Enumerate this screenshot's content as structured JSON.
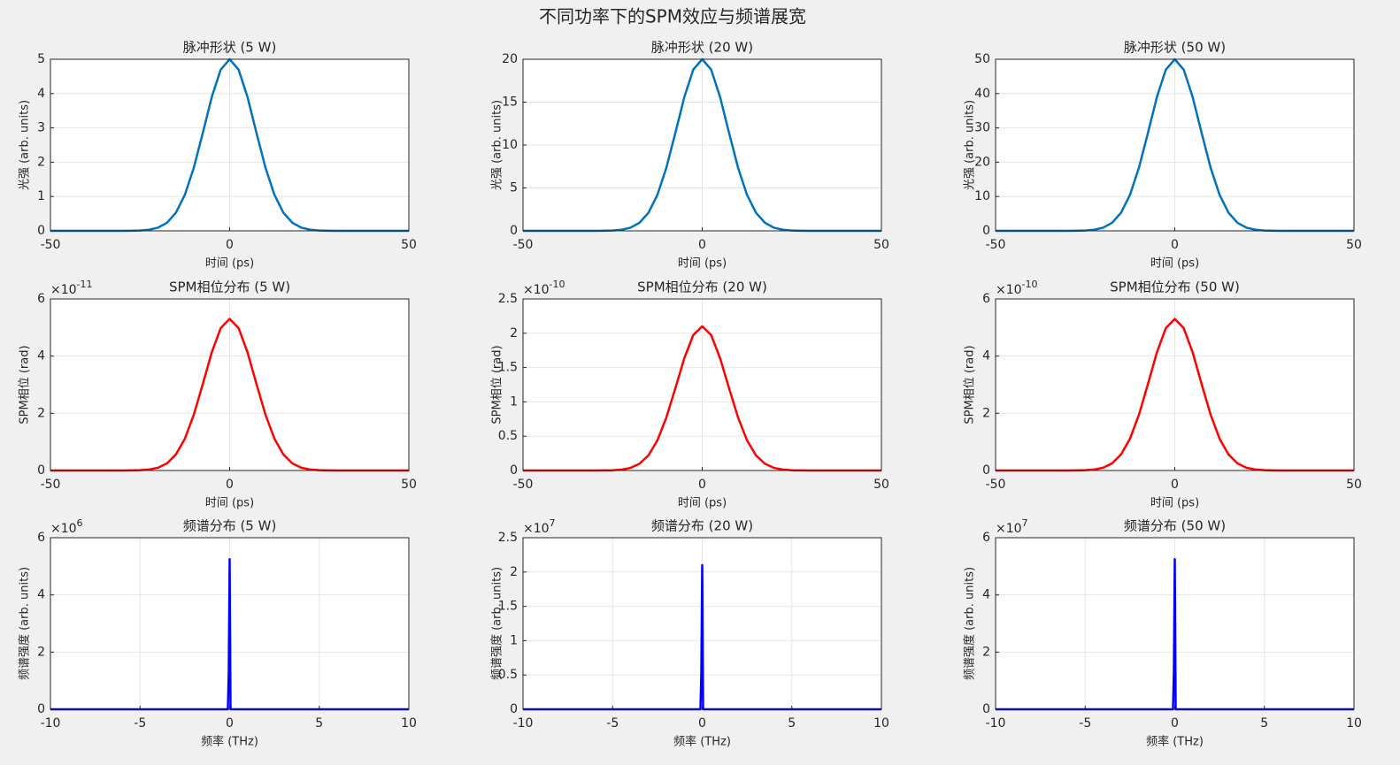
{
  "title": "不同功率下的SPM效应与频谱展宽",
  "chart_data": [
    {
      "type": "line",
      "title": "脉冲形状 (5 W)",
      "xlabel": "时间 (ps)",
      "ylabel": "光强 (arb. units)",
      "grid": true,
      "x": [
        -50,
        -47.5,
        -45,
        -42.5,
        -40,
        -37.5,
        -35,
        -32.5,
        -30,
        -27.5,
        -25,
        -22.5,
        -20,
        -17.5,
        -15,
        -12.5,
        -10,
        -7.5,
        -5,
        -2.5,
        0,
        2.5,
        5,
        7.5,
        10,
        12.5,
        15,
        17.5,
        20,
        22.5,
        25,
        27.5,
        30,
        32.5,
        35,
        37.5,
        40,
        42.5,
        45,
        47.5,
        50
      ],
      "series": [
        {
          "color": "#0072bd",
          "values": [
            0,
            0,
            0,
            0,
            0,
            0,
            0,
            0,
            0,
            0.003,
            0.01,
            0.032,
            0.092,
            0.234,
            0.527,
            1.048,
            1.839,
            2.849,
            3.894,
            4.697,
            5,
            4.697,
            3.894,
            2.849,
            1.839,
            1.048,
            0.527,
            0.234,
            0.092,
            0.032,
            0.01,
            0.003,
            0,
            0,
            0,
            0,
            0,
            0,
            0,
            0,
            0
          ]
        }
      ],
      "xlim": [
        -50,
        50
      ],
      "xticks": [
        -50,
        0,
        50
      ],
      "ylim": [
        0,
        5
      ],
      "yticks": [
        0,
        1,
        2,
        3,
        4,
        5
      ]
    },
    {
      "type": "line",
      "title": "脉冲形状 (20 W)",
      "xlabel": "时间 (ps)",
      "ylabel": "光强 (arb. units)",
      "grid": true,
      "x": [
        -50,
        -47.5,
        -45,
        -42.5,
        -40,
        -37.5,
        -35,
        -32.5,
        -30,
        -27.5,
        -25,
        -22.5,
        -20,
        -17.5,
        -15,
        -12.5,
        -10,
        -7.5,
        -5,
        -2.5,
        0,
        2.5,
        5,
        7.5,
        10,
        12.5,
        15,
        17.5,
        20,
        22.5,
        25,
        27.5,
        30,
        32.5,
        35,
        37.5,
        40,
        42.5,
        45,
        47.5,
        50
      ],
      "series": [
        {
          "color": "#0072bd",
          "values": [
            0,
            0,
            0,
            0,
            0,
            0,
            0,
            0,
            0,
            0.01,
            0.04,
            0.13,
            0.37,
            0.94,
            2.11,
            4.19,
            7.36,
            11.4,
            15.58,
            18.79,
            20,
            18.79,
            15.58,
            11.4,
            7.36,
            4.19,
            2.11,
            0.94,
            0.37,
            0.13,
            0.04,
            0.01,
            0,
            0,
            0,
            0,
            0,
            0,
            0,
            0,
            0
          ]
        }
      ],
      "xlim": [
        -50,
        50
      ],
      "xticks": [
        -50,
        0,
        50
      ],
      "ylim": [
        0,
        20
      ],
      "yticks": [
        0,
        5,
        10,
        15,
        20
      ]
    },
    {
      "type": "line",
      "title": "脉冲形状 (50 W)",
      "xlabel": "时间 (ps)",
      "ylabel": "光强 (arb. units)",
      "grid": true,
      "x": [
        -50,
        -47.5,
        -45,
        -42.5,
        -40,
        -37.5,
        -35,
        -32.5,
        -30,
        -27.5,
        -25,
        -22.5,
        -20,
        -17.5,
        -15,
        -12.5,
        -10,
        -7.5,
        -5,
        -2.5,
        0,
        2.5,
        5,
        7.5,
        10,
        12.5,
        15,
        17.5,
        20,
        22.5,
        25,
        27.5,
        30,
        32.5,
        35,
        37.5,
        40,
        42.5,
        45,
        47.5,
        50
      ],
      "series": [
        {
          "color": "#0072bd",
          "values": [
            0,
            0,
            0,
            0,
            0,
            0,
            0,
            0,
            0,
            0.03,
            0.1,
            0.32,
            0.92,
            2.34,
            5.27,
            10.48,
            18.39,
            28.49,
            38.94,
            46.97,
            50,
            46.97,
            38.94,
            28.49,
            18.39,
            10.48,
            5.27,
            2.34,
            0.92,
            0.32,
            0.1,
            0.03,
            0,
            0,
            0,
            0,
            0,
            0,
            0,
            0,
            0
          ]
        }
      ],
      "xlim": [
        -50,
        50
      ],
      "xticks": [
        -50,
        0,
        50
      ],
      "ylim": [
        0,
        50
      ],
      "yticks": [
        0,
        10,
        20,
        30,
        40,
        50
      ]
    },
    {
      "type": "line",
      "title": "SPM相位分布 (5 W)",
      "xlabel": "时间 (ps)",
      "ylabel": "SPM相位 (rad)",
      "grid": true,
      "y_multiplier": "×10",
      "y_exponent": -11,
      "x": [
        -50,
        -47.5,
        -45,
        -42.5,
        -40,
        -37.5,
        -35,
        -32.5,
        -30,
        -27.5,
        -25,
        -22.5,
        -20,
        -17.5,
        -15,
        -12.5,
        -10,
        -7.5,
        -5,
        -2.5,
        0,
        2.5,
        5,
        7.5,
        10,
        12.5,
        15,
        17.5,
        20,
        22.5,
        25,
        27.5,
        30,
        32.5,
        35,
        37.5,
        40,
        42.5,
        45,
        47.5,
        50
      ],
      "series": [
        {
          "color": "#ff0000",
          "values": [
            0,
            0,
            0,
            0,
            0,
            0,
            0,
            0,
            0,
            3e-14,
            1e-13,
            3.3e-13,
            9.7e-13,
            2.48e-12,
            5.59e-12,
            1.111e-11,
            1.95e-11,
            3.02e-11,
            4.128e-11,
            4.979e-11,
            5.3e-11,
            4.979e-11,
            4.128e-11,
            3.02e-11,
            1.95e-11,
            1.111e-11,
            5.59e-12,
            2.48e-12,
            9.7e-13,
            3.3e-13,
            1e-13,
            3e-14,
            0,
            0,
            0,
            0,
            0,
            0,
            0,
            0,
            0
          ]
        }
      ],
      "xlim": [
        -50,
        50
      ],
      "xticks": [
        -50,
        0,
        50
      ],
      "ylim": [
        0,
        6e-11
      ],
      "yticks": [
        0,
        {
          "value": 2e-11,
          "label": "2"
        },
        {
          "value": 4e-11,
          "label": "4"
        },
        {
          "value": 6e-11,
          "label": "6"
        }
      ]
    },
    {
      "type": "line",
      "title": "SPM相位分布 (20 W)",
      "xlabel": "时间 (ps)",
      "ylabel": "SPM相位 (rad)",
      "grid": true,
      "y_multiplier": "×10",
      "y_exponent": -10,
      "x": [
        -50,
        -47.5,
        -45,
        -42.5,
        -40,
        -37.5,
        -35,
        -32.5,
        -30,
        -27.5,
        -25,
        -22.5,
        -20,
        -17.5,
        -15,
        -12.5,
        -10,
        -7.5,
        -5,
        -2.5,
        0,
        2.5,
        5,
        7.5,
        10,
        12.5,
        15,
        17.5,
        20,
        22.5,
        25,
        27.5,
        30,
        32.5,
        35,
        37.5,
        40,
        42.5,
        45,
        47.5,
        50
      ],
      "series": [
        {
          "color": "#ff0000",
          "values": [
            0,
            0,
            0,
            0,
            0,
            0,
            0,
            0,
            0,
            1e-13,
            4e-13,
            1.3e-12,
            3.8e-12,
            9.8e-12,
            2.21e-11,
            4.4e-11,
            7.73e-11,
            1.197e-10,
            1.635e-10,
            1.973e-10,
            2.1e-10,
            1.973e-10,
            1.635e-10,
            1.197e-10,
            7.73e-11,
            4.4e-11,
            2.21e-11,
            9.8e-12,
            3.8e-12,
            1.3e-12,
            4e-13,
            1e-13,
            0,
            0,
            0,
            0,
            0,
            0,
            0,
            0,
            0
          ]
        }
      ],
      "xlim": [
        -50,
        50
      ],
      "xticks": [
        -50,
        0,
        50
      ],
      "ylim": [
        0,
        2.5e-10
      ],
      "yticks": [
        0,
        {
          "value": 5e-11,
          "label": "0.5"
        },
        {
          "value": 1e-10,
          "label": "1"
        },
        {
          "value": 1.5e-10,
          "label": "1.5"
        },
        {
          "value": 2e-10,
          "label": "2"
        },
        {
          "value": 2.5e-10,
          "label": "2.5"
        }
      ]
    },
    {
      "type": "line",
      "title": "SPM相位分布 (50 W)",
      "xlabel": "时间 (ps)",
      "ylabel": "SPM相位 (rad)",
      "grid": true,
      "y_multiplier": "×10",
      "y_exponent": -10,
      "x": [
        -50,
        -47.5,
        -45,
        -42.5,
        -40,
        -37.5,
        -35,
        -32.5,
        -30,
        -27.5,
        -25,
        -22.5,
        -20,
        -17.5,
        -15,
        -12.5,
        -10,
        -7.5,
        -5,
        -2.5,
        0,
        2.5,
        5,
        7.5,
        10,
        12.5,
        15,
        17.5,
        20,
        22.5,
        25,
        27.5,
        30,
        32.5,
        35,
        37.5,
        40,
        42.5,
        45,
        47.5,
        50
      ],
      "series": [
        {
          "color": "#ff0000",
          "values": [
            0,
            0,
            0,
            0,
            0,
            0,
            0,
            0,
            0,
            3e-13,
            1e-12,
            3.3e-12,
            9.7e-12,
            2.48e-11,
            5.59e-11,
            1.111e-10,
            1.95e-10,
            3.02e-10,
            4.128e-10,
            4.979e-10,
            5.3e-10,
            4.979e-10,
            4.128e-10,
            3.02e-10,
            1.95e-10,
            1.111e-10,
            5.59e-11,
            2.48e-11,
            9.7e-12,
            3.3e-12,
            1e-12,
            3e-13,
            0,
            0,
            0,
            0,
            0,
            0,
            0,
            0,
            0
          ]
        }
      ],
      "xlim": [
        -50,
        50
      ],
      "xticks": [
        -50,
        0,
        50
      ],
      "ylim": [
        0,
        6e-10
      ],
      "yticks": [
        0,
        {
          "value": 2e-10,
          "label": "2"
        },
        {
          "value": 4e-10,
          "label": "4"
        },
        {
          "value": 6e-10,
          "label": "6"
        }
      ]
    },
    {
      "type": "line",
      "title": "频谱分布 (5 W)",
      "xlabel": "频率 (THz)",
      "ylabel": "频谱强度 (arb. units)",
      "grid": true,
      "y_multiplier": "×10",
      "y_exponent": 6,
      "x": [
        -10,
        -0.1,
        -0.05,
        0,
        0.05,
        10
      ],
      "series": [
        {
          "color": "#0000ff",
          "values": [
            0,
            0,
            1300000,
            5250000,
            0,
            0
          ]
        }
      ],
      "xlim": [
        -10,
        10
      ],
      "xticks": [
        -10,
        -5,
        0,
        5,
        10
      ],
      "ylim": [
        0,
        6000000
      ],
      "yticks": [
        0,
        {
          "value": 2000000,
          "label": "2"
        },
        {
          "value": 4000000,
          "label": "4"
        },
        {
          "value": 6000000,
          "label": "6"
        }
      ]
    },
    {
      "type": "line",
      "title": "频谱分布 (20 W)",
      "xlabel": "频率 (THz)",
      "ylabel": "频谱强度 (arb. units)",
      "grid": true,
      "y_multiplier": "×10",
      "y_exponent": 7,
      "x": [
        -10,
        -0.1,
        -0.05,
        0,
        0.05,
        10
      ],
      "series": [
        {
          "color": "#0000ff",
          "values": [
            0,
            0,
            5200000,
            21000000,
            0,
            0
          ]
        }
      ],
      "xlim": [
        -10,
        10
      ],
      "xticks": [
        -10,
        -5,
        0,
        5,
        10
      ],
      "ylim": [
        0,
        25000000
      ],
      "yticks": [
        0,
        {
          "value": 5000000,
          "label": "0.5"
        },
        {
          "value": 10000000,
          "label": "1"
        },
        {
          "value": 15000000,
          "label": "1.5"
        },
        {
          "value": 20000000,
          "label": "2"
        },
        {
          "value": 25000000,
          "label": "2.5"
        }
      ]
    },
    {
      "type": "line",
      "title": "频谱分布 (50 W)",
      "xlabel": "频率 (THz)",
      "ylabel": "频谱强度 (arb. units)",
      "grid": true,
      "y_multiplier": "×10",
      "y_exponent": 7,
      "x": [
        -10,
        -0.1,
        -0.05,
        0,
        0.05,
        10
      ],
      "series": [
        {
          "color": "#0000ff",
          "values": [
            0,
            0,
            13000000,
            52500000,
            0,
            0
          ]
        }
      ],
      "xlim": [
        -10,
        10
      ],
      "xticks": [
        -10,
        -5,
        0,
        5,
        10
      ],
      "ylim": [
        0,
        60000000
      ],
      "yticks": [
        0,
        {
          "value": 20000000,
          "label": "2"
        },
        {
          "value": 40000000,
          "label": "4"
        },
        {
          "value": 60000000,
          "label": "6"
        }
      ]
    }
  ]
}
